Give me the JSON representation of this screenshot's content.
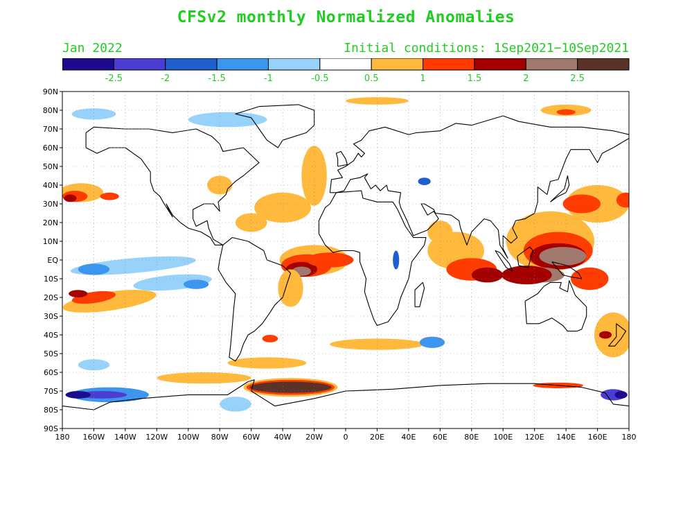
{
  "header": {
    "title": "CFSv2 monthly Normalized Anomalies",
    "month": "Jan 2022",
    "initial_conditions": "Initial conditions: 1Sep2021−10Sep2021"
  },
  "colorbar": {
    "colors": [
      "#1e0a8c",
      "#4b3cd2",
      "#1e5fcd",
      "#3c96f0",
      "#96d2fa",
      "#ffffff",
      "#ffb93c",
      "#ff3c00",
      "#a50000",
      "#a0786e",
      "#5a3228"
    ],
    "labels": [
      "-2.5",
      "-2",
      "-1.5",
      "-1",
      "-0.5",
      "0.5",
      "1",
      "1.5",
      "2",
      "2.5"
    ],
    "label_color": "#22cc22"
  },
  "map": {
    "lat_labels": [
      "90N",
      "80N",
      "70N",
      "60N",
      "50N",
      "40N",
      "30N",
      "20N",
      "10N",
      "EQ",
      "10S",
      "20S",
      "30S",
      "40S",
      "50S",
      "60S",
      "70S",
      "80S",
      "90S"
    ],
    "lon_labels": [
      "180",
      "160W",
      "140W",
      "120W",
      "100W",
      "80W",
      "60W",
      "40W",
      "20W",
      "0",
      "20E",
      "40E",
      "60E",
      "80E",
      "100E",
      "120E",
      "140E",
      "160E",
      "180"
    ],
    "grid": "dotted",
    "coastline_color": "#000000"
  }
}
